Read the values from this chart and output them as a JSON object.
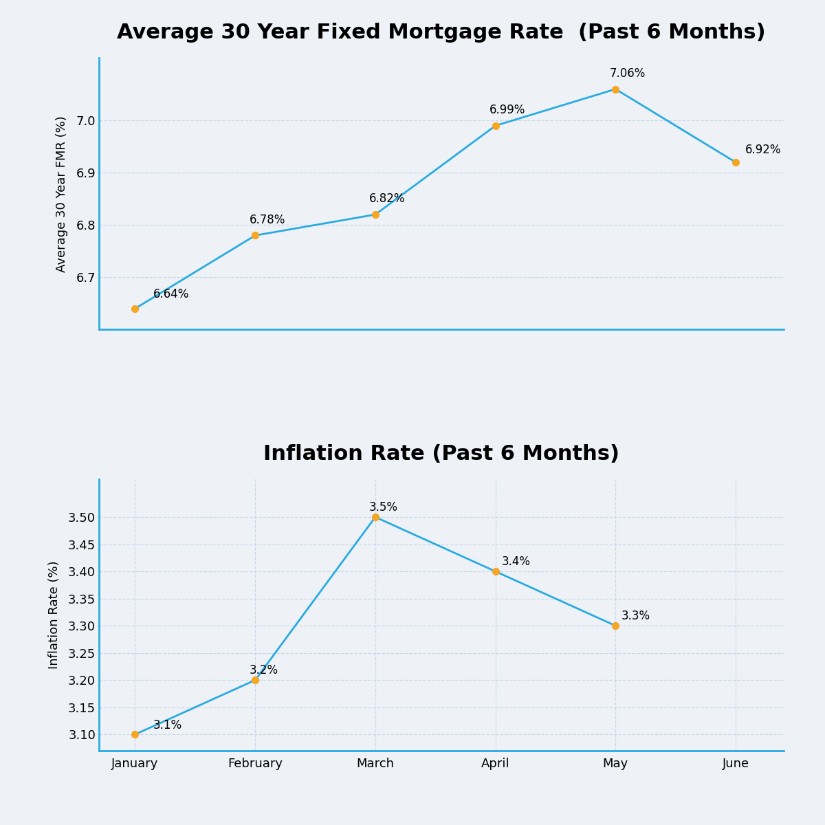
{
  "months": [
    "January",
    "February",
    "March",
    "April",
    "May",
    "June"
  ],
  "fmr_values": [
    6.64,
    6.78,
    6.82,
    6.99,
    7.06,
    6.92
  ],
  "fmr_labels": [
    "6.64%",
    "6.78%",
    "6.82%",
    "6.99%",
    "7.06%",
    "6.92%"
  ],
  "fmr_title": "Average 30 Year Fixed Mortgage Rate  (Past 6 Months)",
  "fmr_ylabel": "Average 30 Year FMR (%)",
  "fmr_ylim": [
    6.6,
    7.12
  ],
  "fmr_yticks": [
    6.7,
    6.8,
    6.9,
    7.0
  ],
  "inf_values": [
    3.1,
    3.2,
    3.5,
    3.4,
    3.3,
    null
  ],
  "inf_labels": [
    "3.1%",
    "3.2%",
    "3.5%",
    "3.4%",
    "3.3%"
  ],
  "inf_title": "Inflation Rate (Past 6 Months)",
  "inf_ylabel": "Inflation Rate (%)",
  "inf_ylim": [
    3.07,
    3.57
  ],
  "inf_yticks": [
    3.1,
    3.15,
    3.2,
    3.25,
    3.3,
    3.35,
    3.4,
    3.45,
    3.5
  ],
  "line_color": "#29ABE2",
  "marker_color": "#F5A623",
  "bg_color": "#EEF2F7",
  "title_fontsize": 22,
  "label_fontsize": 13,
  "tick_fontsize": 13,
  "annotation_fontsize": 12
}
